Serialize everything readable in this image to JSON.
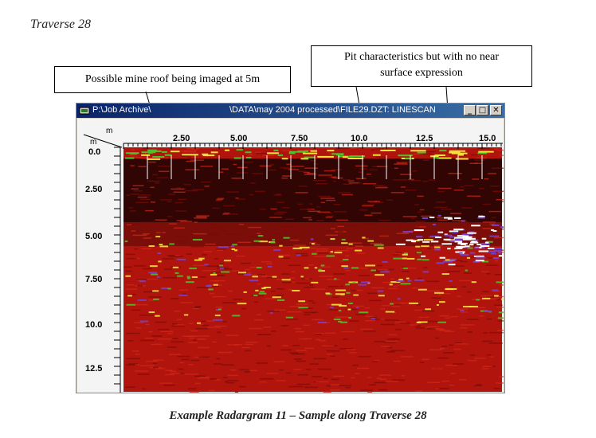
{
  "document": {
    "heading": "Traverse 28",
    "caption": "Example Radargram 11 – Sample along Traverse 28"
  },
  "callouts": {
    "left": "Possible mine roof being imaged at 5m",
    "right_line1": "Pit characteristics but with no near",
    "right_line2": "surface expression"
  },
  "window": {
    "title_left": "P:\\Job Archive\\",
    "title_right": "\\DATA\\may 2004 processed\\FILE29.DZT:  LINESCAN",
    "buttons": {
      "minimize": "_",
      "maximize": "□",
      "close": "✕"
    }
  },
  "radargram": {
    "x_unit": "m",
    "y_unit": "m",
    "x_ticks": [
      "2.50",
      "5.00",
      "7.50",
      "10.0",
      "12.5",
      "15.0"
    ],
    "y_ticks": [
      "0.0",
      "2.50",
      "5.00",
      "7.50",
      "10.0",
      "12.5"
    ]
  },
  "colors": {
    "background_red": "#b0140c",
    "dark_band": "#1a0202",
    "yellow": "#f2e33c",
    "green": "#4fbf2a",
    "purple": "#7a3fc8",
    "white": "#ffffff"
  }
}
